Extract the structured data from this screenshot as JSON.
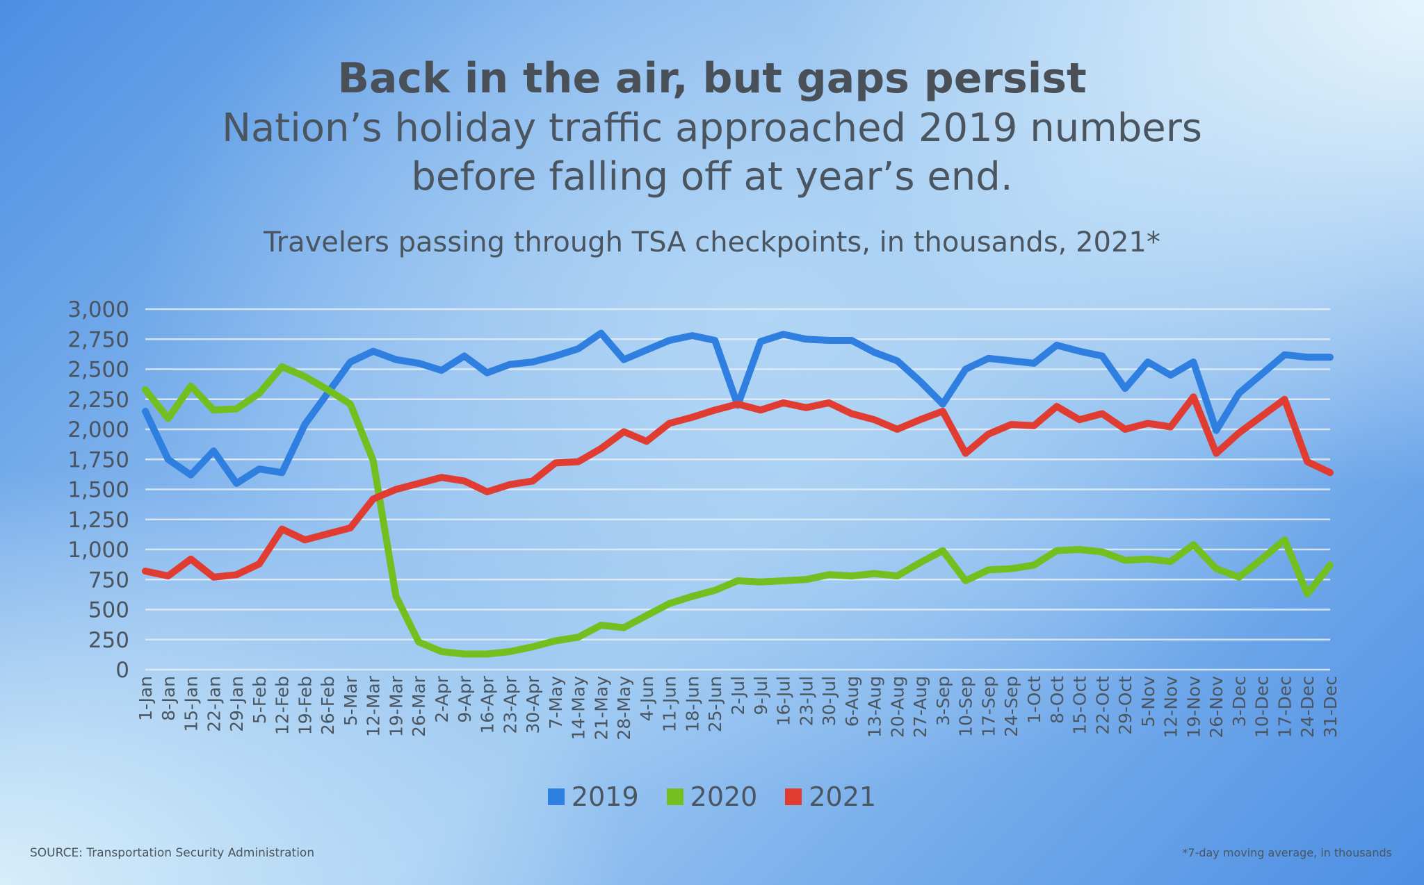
{
  "header": {
    "title": "Back in the air, but gaps persist",
    "subtitle_line1": "Nation’s holiday traffic approached 2019 numbers",
    "subtitle_line2": "before falling off at year’s end.",
    "chart_subtitle": "Travelers passing through TSA checkpoints, in thousands, 2021*"
  },
  "footer": {
    "source": "SOURCE: Transportation Security Administration",
    "footnote": "*7-day moving average, in thousands"
  },
  "chart_data": {
    "type": "line",
    "title": "Travelers passing through TSA checkpoints, in thousands, 2021*",
    "xlabel": "",
    "ylabel": "",
    "ylim": [
      0,
      3000
    ],
    "yticks": [
      "0",
      "250",
      "500",
      "750",
      "1,000",
      "1,250",
      "1,500",
      "1,750",
      "2,000",
      "2,250",
      "2,500",
      "2,750",
      "3,000"
    ],
    "grid": true,
    "legend": "bottom",
    "x": [
      "1-Jan",
      "8-Jan",
      "15-Jan",
      "22-Jan",
      "29-Jan",
      "5-Feb",
      "12-Feb",
      "19-Feb",
      "26-Feb",
      "5-Mar",
      "12-Mar",
      "19-Mar",
      "26-Mar",
      "2-Apr",
      "9-Apr",
      "16-Apr",
      "23-Apr",
      "30-Apr",
      "7-May",
      "14-May",
      "21-May",
      "28-May",
      "4-Jun",
      "11-Jun",
      "18-Jun",
      "25-Jun",
      "2-Jul",
      "9-Jul",
      "16-Jul",
      "23-Jul",
      "30-Jul",
      "6-Aug",
      "13-Aug",
      "20-Aug",
      "27-Aug",
      "3-Sep",
      "10-Sep",
      "17-Sep",
      "24-Sep",
      "1-Oct",
      "8-Oct",
      "15-Oct",
      "22-Oct",
      "29-Oct",
      "5-Nov",
      "12-Nov",
      "19-Nov",
      "26-Nov",
      "3-Dec",
      "10-Dec",
      "17-Dec",
      "24-Dec",
      "31-Dec"
    ],
    "series": [
      {
        "name": "2019",
        "color": "#2f7fe0",
        "values": [
          2150,
          1750,
          1620,
          1820,
          1550,
          1670,
          1640,
          2040,
          2300,
          2560,
          2650,
          2580,
          2550,
          2490,
          2610,
          2470,
          2540,
          2560,
          2610,
          2670,
          2800,
          2580,
          2660,
          2740,
          2780,
          2740,
          2200,
          2730,
          2790,
          2750,
          2740,
          2740,
          2640,
          2570,
          2400,
          2210,
          2500,
          2590,
          2570,
          2550,
          2700,
          2650,
          2610,
          2340,
          2560,
          2450,
          2560,
          1990,
          2300,
          2460,
          2620,
          2600,
          2600
        ]
      },
      {
        "name": "2020",
        "color": "#72bf1f",
        "values": [
          2330,
          2090,
          2360,
          2160,
          2170,
          2300,
          2520,
          2440,
          2330,
          2210,
          1740,
          610,
          230,
          150,
          130,
          130,
          150,
          190,
          240,
          270,
          370,
          350,
          450,
          550,
          610,
          660,
          740,
          730,
          740,
          750,
          790,
          780,
          800,
          780,
          890,
          990,
          740,
          830,
          840,
          870,
          990,
          1000,
          980,
          910,
          920,
          900,
          1040,
          840,
          770,
          920,
          1080,
          630,
          870
        ]
      },
      {
        "name": "2021",
        "color": "#e03c31",
        "values": [
          820,
          780,
          920,
          770,
          790,
          880,
          1170,
          1080,
          1130,
          1180,
          1420,
          1500,
          1550,
          1600,
          1570,
          1480,
          1540,
          1570,
          1720,
          1730,
          1840,
          1980,
          1900,
          2050,
          2100,
          2160,
          2210,
          2160,
          2220,
          2180,
          2220,
          2130,
          2080,
          2000,
          2080,
          2150,
          1800,
          1960,
          2040,
          2030,
          2190,
          2080,
          2130,
          2000,
          2050,
          2020,
          2270,
          1800,
          1970,
          2110,
          2250,
          1730,
          1640
        ]
      }
    ]
  }
}
